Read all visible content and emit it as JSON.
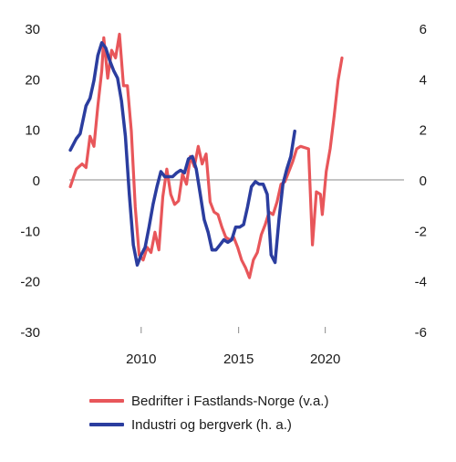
{
  "chart_data": {
    "type": "line",
    "x_ticks": [
      "2010",
      "2015",
      "2020"
    ],
    "xlim": [
      2005.25,
      2022.25
    ],
    "y_left": {
      "lim": [
        -30,
        30
      ],
      "ticks": [
        "30",
        "20",
        "10",
        "0",
        "-10",
        "-20",
        "-30"
      ]
    },
    "y_right": {
      "lim": [
        -6,
        6
      ],
      "ticks": [
        "6",
        "4",
        "2",
        "0",
        "-2",
        "-4",
        "-6"
      ]
    },
    "zero_line": true,
    "grid": false,
    "legend_position": "bottom",
    "series": [
      {
        "name": "Bedrifter i Fastlands-Norge (v.a.)",
        "axis": "left",
        "color": "#e8565a",
        "points": [
          [
            2005.3,
            -1.0
          ],
          [
            2005.6,
            2.5
          ],
          [
            2005.9,
            3.5
          ],
          [
            2006.1,
            2.8
          ],
          [
            2006.3,
            9.0
          ],
          [
            2006.5,
            7.0
          ],
          [
            2006.7,
            15.0
          ],
          [
            2006.9,
            22.0
          ],
          [
            2007.0,
            28.5
          ],
          [
            2007.2,
            20.5
          ],
          [
            2007.4,
            26.0
          ],
          [
            2007.6,
            24.5
          ],
          [
            2007.8,
            29.2
          ],
          [
            2008.0,
            19.0
          ],
          [
            2008.2,
            19.0
          ],
          [
            2008.4,
            10.0
          ],
          [
            2008.6,
            -5.0
          ],
          [
            2008.8,
            -14.5
          ],
          [
            2009.0,
            -15.5
          ],
          [
            2009.2,
            -13.0
          ],
          [
            2009.4,
            -14.0
          ],
          [
            2009.6,
            -10.0
          ],
          [
            2009.8,
            -13.5
          ],
          [
            2010.0,
            -3.0
          ],
          [
            2010.2,
            2.5
          ],
          [
            2010.4,
            -2.5
          ],
          [
            2010.6,
            -4.5
          ],
          [
            2010.8,
            -3.8
          ],
          [
            2011.0,
            1.5
          ],
          [
            2011.2,
            -0.5
          ],
          [
            2011.4,
            5.0
          ],
          [
            2011.6,
            3.0
          ],
          [
            2011.8,
            7.0
          ],
          [
            2012.0,
            3.5
          ],
          [
            2012.2,
            5.5
          ],
          [
            2012.4,
            -4.0
          ],
          [
            2012.6,
            -6.0
          ],
          [
            2012.8,
            -6.5
          ],
          [
            2013.0,
            -9.0
          ],
          [
            2013.2,
            -11.0
          ],
          [
            2013.4,
            -11.5
          ],
          [
            2013.6,
            -11.0
          ],
          [
            2013.8,
            -13.0
          ],
          [
            2014.0,
            -15.5
          ],
          [
            2014.2,
            -17.0
          ],
          [
            2014.4,
            -19.0
          ],
          [
            2014.6,
            -15.5
          ],
          [
            2014.8,
            -14.0
          ],
          [
            2015.0,
            -10.5
          ],
          [
            2015.2,
            -8.5
          ],
          [
            2015.4,
            -6.0
          ],
          [
            2015.6,
            -6.5
          ],
          [
            2015.8,
            -4.0
          ],
          [
            2016.0,
            -0.5
          ],
          [
            2016.2,
            0.0
          ],
          [
            2016.4,
            2.0
          ],
          [
            2016.6,
            4.0
          ],
          [
            2016.8,
            6.5
          ],
          [
            2017.0,
            7.0
          ],
          [
            2017.4,
            6.5
          ],
          [
            2017.6,
            -12.5
          ],
          [
            2017.8,
            -2.0
          ],
          [
            2018.0,
            -2.5
          ],
          [
            2018.1,
            -6.5
          ],
          [
            2018.3,
            2.0
          ],
          [
            2018.5,
            6.5
          ],
          [
            2018.7,
            13.0
          ],
          [
            2018.9,
            20.0
          ],
          [
            2019.1,
            24.5
          ]
        ]
      },
      {
        "name": "Industri og bergverk (h. a.)",
        "axis": "right",
        "color": "#2b3d9f",
        "points": [
          [
            2005.3,
            1.25
          ],
          [
            2005.6,
            1.7
          ],
          [
            2005.8,
            1.9
          ],
          [
            2006.1,
            3.0
          ],
          [
            2006.3,
            3.3
          ],
          [
            2006.5,
            4.0
          ],
          [
            2006.7,
            5.0
          ],
          [
            2006.9,
            5.5
          ],
          [
            2007.1,
            5.3
          ],
          [
            2007.3,
            4.8
          ],
          [
            2007.5,
            4.4
          ],
          [
            2007.7,
            4.1
          ],
          [
            2007.9,
            3.2
          ],
          [
            2008.1,
            1.8
          ],
          [
            2008.3,
            -0.5
          ],
          [
            2008.5,
            -2.5
          ],
          [
            2008.7,
            -3.3
          ],
          [
            2008.9,
            -2.9
          ],
          [
            2009.1,
            -2.6
          ],
          [
            2009.3,
            -1.8
          ],
          [
            2009.5,
            -0.9
          ],
          [
            2009.7,
            -0.2
          ],
          [
            2009.9,
            0.4
          ],
          [
            2010.1,
            0.2
          ],
          [
            2010.3,
            0.2
          ],
          [
            2010.5,
            0.2
          ],
          [
            2010.7,
            0.35
          ],
          [
            2010.9,
            0.45
          ],
          [
            2011.1,
            0.35
          ],
          [
            2011.3,
            0.9
          ],
          [
            2011.5,
            1.0
          ],
          [
            2011.7,
            0.5
          ],
          [
            2011.9,
            -0.5
          ],
          [
            2012.1,
            -1.5
          ],
          [
            2012.3,
            -2.0
          ],
          [
            2012.5,
            -2.7
          ],
          [
            2012.7,
            -2.7
          ],
          [
            2012.9,
            -2.5
          ],
          [
            2013.1,
            -2.3
          ],
          [
            2013.3,
            -2.4
          ],
          [
            2013.5,
            -2.3
          ],
          [
            2013.7,
            -1.8
          ],
          [
            2013.9,
            -1.8
          ],
          [
            2014.1,
            -1.7
          ],
          [
            2014.3,
            -1.0
          ],
          [
            2014.5,
            -0.2
          ],
          [
            2014.7,
            0.0
          ],
          [
            2014.9,
            -0.1
          ],
          [
            2015.1,
            -0.1
          ],
          [
            2015.3,
            -0.5
          ],
          [
            2015.5,
            -2.9
          ],
          [
            2015.7,
            -3.2
          ],
          [
            2015.9,
            -1.5
          ],
          [
            2016.1,
            -0.1
          ],
          [
            2016.3,
            0.5
          ],
          [
            2016.5,
            1.0
          ],
          [
            2016.7,
            2.0
          ]
        ]
      }
    ]
  }
}
